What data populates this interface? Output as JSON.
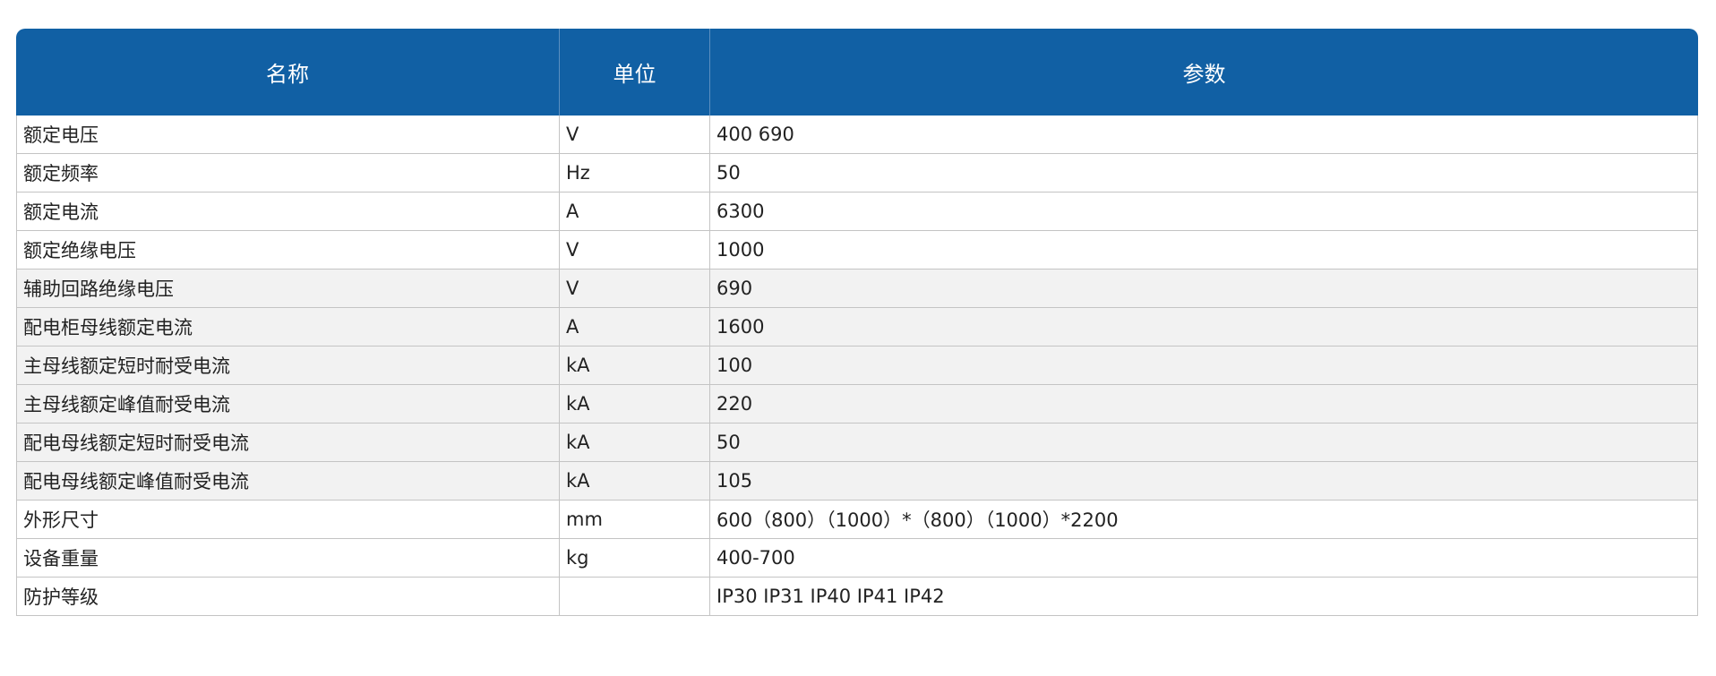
{
  "table": {
    "headers": [
      "名称",
      "单位",
      "参数"
    ],
    "rows": [
      {
        "name": "额定电压",
        "unit": "V",
        "value": "400 690"
      },
      {
        "name": "额定频率",
        "unit": "Hz",
        "value": "50"
      },
      {
        "name": "额定电流",
        "unit": "A",
        "value": "6300"
      },
      {
        "name": "额定绝缘电压",
        "unit": "V",
        "value": "1000"
      },
      {
        "name": "辅助回路绝缘电压",
        "unit": "V",
        "value": "690"
      },
      {
        "name": "配电柜母线额定电流",
        "unit": "A",
        "value": "1600"
      },
      {
        "name": "主母线额定短时耐受电流",
        "unit": "kA",
        "value": "100"
      },
      {
        "name": "主母线额定峰值耐受电流",
        "unit": "kA",
        "value": "220"
      },
      {
        "name": "配电母线额定短时耐受电流",
        "unit": "kA",
        "value": "50"
      },
      {
        "name": "配电母线额定峰值耐受电流",
        "unit": "kA",
        "value": "105"
      },
      {
        "name": "外形尺寸",
        "unit": "mm",
        "value": "600（800）（1000）*（800）（1000）*2200"
      },
      {
        "name": "设备重量",
        "unit": "kg",
        "value": "400-700"
      },
      {
        "name": "防护等级",
        "unit": "",
        "value": "IP30 IP31 IP40 IP41 IP42"
      }
    ]
  },
  "colors": {
    "header_bg": "#1160a4",
    "alt_row_bg": "#f2f2f2"
  }
}
